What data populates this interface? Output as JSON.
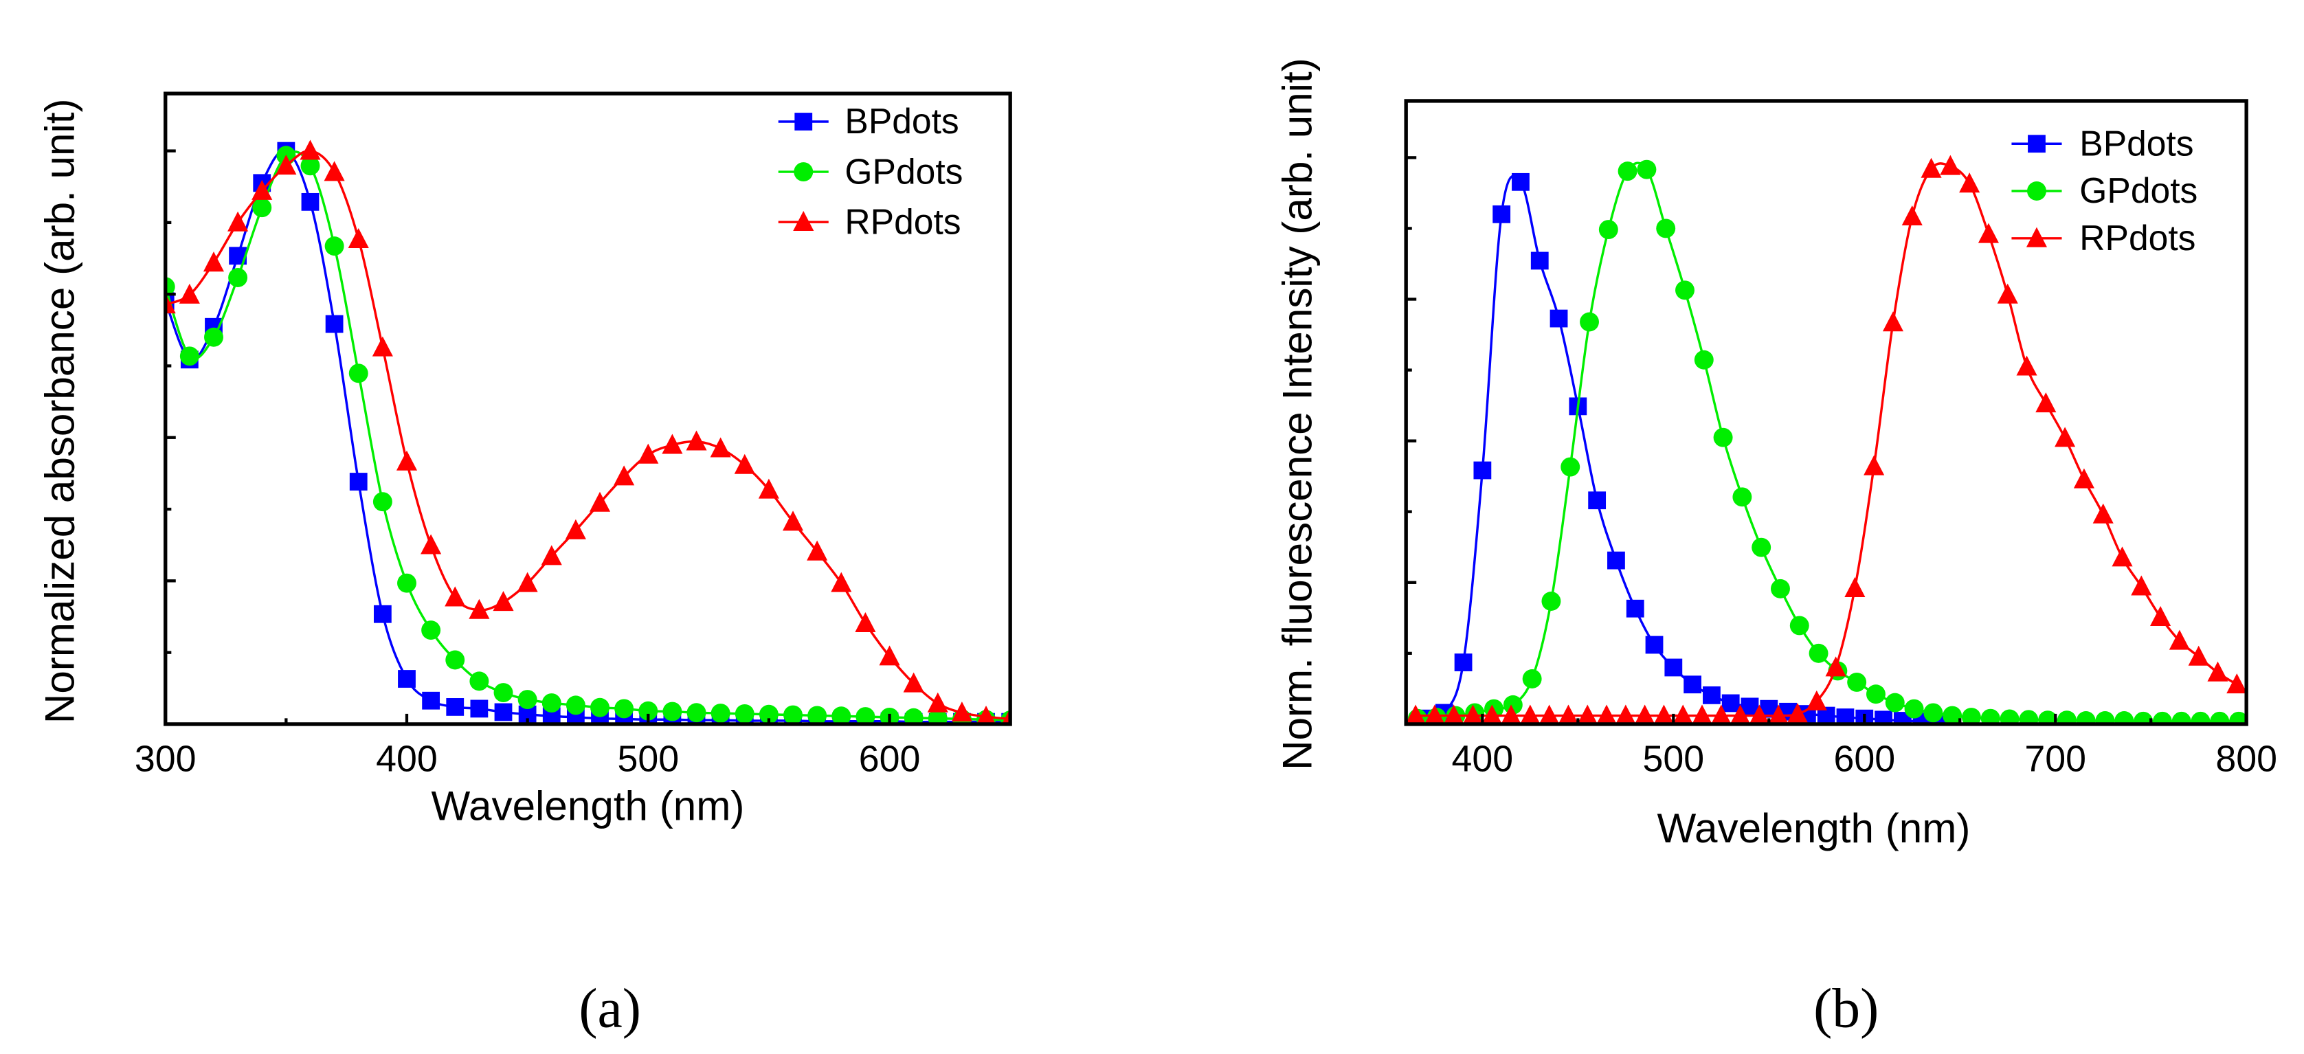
{
  "colors": {
    "BPdots": "#0000ff",
    "GPdots": "#00ee00",
    "RPdots": "#ff0000",
    "axis": "#000000"
  },
  "chart_data": [
    {
      "type": "line",
      "panel_label": "(a)",
      "xlabel": "Wavelength (nm)",
      "ylabel": "Normalized absorbance (arb. unit)",
      "xlim": [
        300,
        650
      ],
      "ylim": [
        0,
        1.1
      ],
      "xticks": [
        300,
        400,
        500,
        600
      ],
      "xtick_labels": [
        "300",
        "400",
        "500",
        "600"
      ],
      "legend_position": "top-right",
      "grid": false,
      "series": [
        {
          "name": "BPdots",
          "marker": "square",
          "x": [
            300,
            310,
            320,
            330,
            340,
            350,
            360,
            370,
            380,
            390,
            400,
            410,
            420,
            430,
            440,
            450,
            460,
            470,
            480,
            490,
            500,
            510,
            520,
            530,
            540,
            550,
            560,
            570,
            580,
            590,
            600,
            610,
            620,
            630,
            640,
            650
          ],
          "y": [
            0.738,
            0.636,
            0.693,
            0.817,
            0.944,
            1.0,
            0.911,
            0.698,
            0.423,
            0.192,
            0.079,
            0.041,
            0.03,
            0.027,
            0.021,
            0.017,
            0.014,
            0.012,
            0.01,
            0.009,
            0.008,
            0.008,
            0.007,
            0.007,
            0.006,
            0.006,
            0.006,
            0.005,
            0.005,
            0.005,
            0.005,
            0.004,
            0.004,
            0.004,
            0.004,
            0.004
          ]
        },
        {
          "name": "GPdots",
          "marker": "circle",
          "x": [
            300,
            310,
            320,
            330,
            340,
            350,
            360,
            370,
            380,
            390,
            400,
            410,
            420,
            430,
            440,
            450,
            460,
            470,
            480,
            490,
            500,
            510,
            520,
            530,
            540,
            550,
            560,
            570,
            580,
            590,
            600,
            610,
            620,
            630,
            640,
            650
          ],
          "y": [
            0.763,
            0.642,
            0.675,
            0.779,
            0.901,
            0.992,
            0.974,
            0.834,
            0.612,
            0.388,
            0.246,
            0.164,
            0.112,
            0.075,
            0.055,
            0.043,
            0.037,
            0.033,
            0.029,
            0.027,
            0.023,
            0.022,
            0.02,
            0.019,
            0.018,
            0.017,
            0.016,
            0.015,
            0.014,
            0.013,
            0.012,
            0.011,
            0.01,
            0.009,
            0.008,
            0.007
          ]
        },
        {
          "name": "RPdots",
          "marker": "triangle",
          "x": [
            300,
            310,
            320,
            330,
            340,
            350,
            360,
            370,
            380,
            390,
            400,
            410,
            420,
            430,
            440,
            450,
            460,
            470,
            480,
            490,
            500,
            510,
            520,
            530,
            540,
            550,
            560,
            570,
            580,
            590,
            600,
            610,
            620,
            630,
            640,
            650
          ],
          "y": [
            0.732,
            0.749,
            0.805,
            0.875,
            0.93,
            0.974,
            1.0,
            0.963,
            0.846,
            0.657,
            0.458,
            0.312,
            0.221,
            0.199,
            0.213,
            0.246,
            0.293,
            0.338,
            0.386,
            0.432,
            0.47,
            0.487,
            0.493,
            0.481,
            0.452,
            0.409,
            0.353,
            0.301,
            0.246,
            0.176,
            0.118,
            0.071,
            0.036,
            0.02,
            0.013,
            0.009
          ]
        }
      ]
    },
    {
      "type": "line",
      "panel_label": "(b)",
      "xlabel": "Wavelength (nm)",
      "ylabel": "Norm. fluorescence Intensity (arb. unit)",
      "xlim": [
        360,
        800
      ],
      "ylim": [
        0,
        1.1
      ],
      "xticks": [
        400,
        500,
        600,
        700,
        800
      ],
      "xtick_labels": [
        "400",
        "500",
        "600",
        "700",
        "800"
      ],
      "legend_position": "top-right",
      "grid": false,
      "series": [
        {
          "name": "BPdots",
          "marker": "square",
          "x": [
            370,
            380,
            390,
            400,
            410,
            420,
            430,
            440,
            450,
            460,
            470,
            480,
            490,
            500,
            510,
            520,
            530,
            540,
            550,
            560,
            570,
            580,
            590,
            600,
            610,
            620,
            630,
            640
          ],
          "y": [
            0.01,
            0.02,
            0.109,
            0.448,
            0.9,
            0.957,
            0.818,
            0.716,
            0.561,
            0.395,
            0.289,
            0.204,
            0.14,
            0.1,
            0.07,
            0.051,
            0.037,
            0.031,
            0.027,
            0.022,
            0.018,
            0.015,
            0.012,
            0.01,
            0.008,
            0.006,
            0.005,
            0.004
          ]
        },
        {
          "name": "GPdots",
          "marker": "circle",
          "x": [
            366,
            376,
            386,
            396,
            406,
            416,
            426,
            436,
            446,
            456,
            466,
            476,
            486,
            496,
            506,
            516,
            526,
            536,
            546,
            556,
            566,
            576,
            586,
            596,
            606,
            616,
            626,
            636,
            646,
            656,
            666,
            676,
            686,
            696,
            706,
            716,
            726,
            736,
            746,
            756,
            766,
            776,
            786,
            796
          ],
          "y": [
            0.01,
            0.012,
            0.015,
            0.02,
            0.027,
            0.034,
            0.08,
            0.217,
            0.454,
            0.71,
            0.873,
            0.976,
            0.979,
            0.875,
            0.766,
            0.643,
            0.506,
            0.401,
            0.312,
            0.239,
            0.174,
            0.125,
            0.094,
            0.074,
            0.053,
            0.038,
            0.027,
            0.02,
            0.015,
            0.012,
            0.01,
            0.009,
            0.008,
            0.007,
            0.007,
            0.006,
            0.006,
            0.006,
            0.005,
            0.005,
            0.005,
            0.005,
            0.005,
            0.005
          ]
        },
        {
          "name": "RPdots",
          "marker": "triangle",
          "x": [
            365,
            375,
            385,
            395,
            405,
            415,
            425,
            435,
            445,
            455,
            465,
            475,
            485,
            495,
            505,
            515,
            525,
            535,
            545,
            555,
            565,
            575,
            585,
            595,
            605,
            615,
            625,
            635,
            645,
            655,
            665,
            675,
            685,
            695,
            705,
            715,
            725,
            735,
            745,
            755,
            765,
            775,
            785,
            795
          ],
          "y": [
            0.015,
            0.015,
            0.015,
            0.015,
            0.015,
            0.015,
            0.015,
            0.015,
            0.015,
            0.015,
            0.015,
            0.015,
            0.015,
            0.015,
            0.015,
            0.015,
            0.015,
            0.015,
            0.015,
            0.015,
            0.018,
            0.04,
            0.1,
            0.24,
            0.455,
            0.709,
            0.896,
            0.98,
            0.985,
            0.954,
            0.865,
            0.758,
            0.631,
            0.566,
            0.505,
            0.432,
            0.37,
            0.294,
            0.243,
            0.189,
            0.147,
            0.119,
            0.091,
            0.07
          ]
        }
      ]
    }
  ]
}
